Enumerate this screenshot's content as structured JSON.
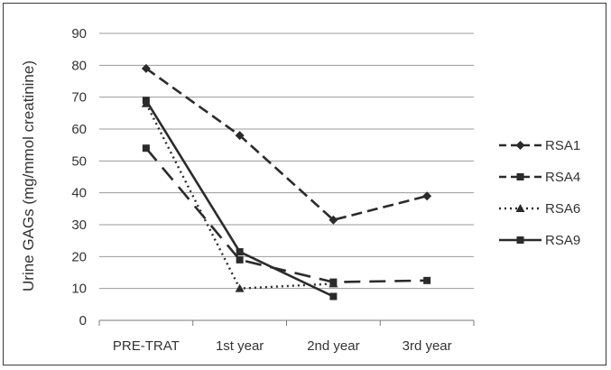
{
  "chart_data": {
    "type": "line",
    "title": "",
    "xlabel": "",
    "ylabel": "Urine GAGs (mg/mmol creatinine)",
    "ylim": [
      0,
      90
    ],
    "ytick_step": 10,
    "categories": [
      "PRE-TRAT",
      "1st year",
      "2nd year",
      "3rd year"
    ],
    "grid": "horizontal",
    "legend_position": "right",
    "series": [
      {
        "name": "RSA1",
        "marker": "diamond",
        "dash": "dashed",
        "values": [
          79,
          58,
          31.5,
          39
        ]
      },
      {
        "name": "RSA4",
        "marker": "square",
        "dash": "longdash",
        "values": [
          54,
          19,
          12,
          12.5
        ]
      },
      {
        "name": "RSA6",
        "marker": "triangle",
        "dash": "dotted",
        "values": [
          68,
          10,
          11.5,
          null
        ]
      },
      {
        "name": "RSA9",
        "marker": "square",
        "dash": "solid",
        "values": [
          69,
          21.5,
          7.5,
          null
        ]
      }
    ],
    "colors": {
      "series": "#2b2b2b",
      "grid": "#9a9a9a",
      "frame": "#3a3a3a"
    }
  }
}
